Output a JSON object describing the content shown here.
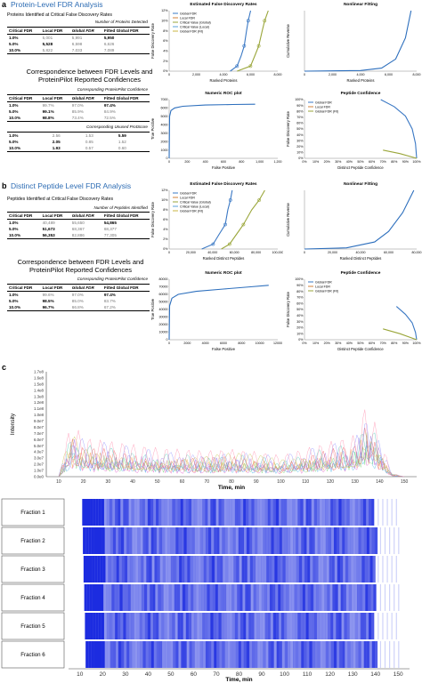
{
  "panel_a": {
    "letter": "a",
    "title": "Protein-Level FDR Analysis",
    "table1": {
      "caption": "Proteins Identified at Critical False Discovery Rates",
      "subheader": "Number of Proteins Detected",
      "headers": [
        "Critical FDR",
        "Local FDR",
        "Global FDR",
        "Fitted Global FDR"
      ],
      "rows": [
        [
          "1.0%",
          "5,001",
          "5,991",
          "5,950"
        ],
        [
          "5.0%",
          "5,528",
          "6,598",
          "6,626"
        ],
        [
          "10.0%",
          "5,822",
          "7,033",
          "7,089"
        ]
      ]
    },
    "table2": {
      "caption": "Correspondence between FDR Levels and ProteinPilot Reported Confidences",
      "subheader": "Corresponding ProteinPilot Confidence",
      "headers": [
        "Critical FDR",
        "Local FDR",
        "Global FDR",
        "Fitted Global FDR"
      ],
      "rows": [
        [
          "1.0%",
          "99.7%",
          "97.0%",
          "97.4%"
        ],
        [
          "5.0%",
          "99.1%",
          "85.9%",
          "84.9%"
        ],
        [
          "10.0%",
          "98.8%",
          "73.4%",
          "72.5%"
        ]
      ],
      "subheader2": "Corresponding Unused ProtScore",
      "rows2": [
        [
          "1.0%",
          "2.56",
          "1.53",
          "5.59"
        ],
        [
          "5.0%",
          "2.05",
          "0.85",
          "1.52"
        ],
        [
          "10.0%",
          "1.93",
          "0.57",
          "0.60"
        ]
      ]
    }
  },
  "panel_b": {
    "letter": "b",
    "title": "Distinct Peptide Level FDR Analysis",
    "table1": {
      "caption": "Peptides Identified at Critical False Discovery Rates",
      "subheader": "Number of Peptides Identified",
      "headers": [
        "Critical FDR",
        "Local FDR",
        "Global FDR",
        "Fitted Global FDR"
      ],
      "rows": [
        [
          "1.0%",
          "40,489",
          "55,650",
          "54,865"
        ],
        [
          "5.0%",
          "51,673",
          "68,367",
          "68,377"
        ],
        [
          "10.0%",
          "56,353",
          "82,886",
          "77,305"
        ]
      ]
    },
    "table2": {
      "caption": "Correspondence between FDR Levels and ProteinPilot Reported Confidences",
      "subheader": "Corresponding ProteinPilot Confidence",
      "headers": [
        "Critical FDR",
        "Local FDR",
        "Global FDR",
        "Fitted Global FDR"
      ],
      "rows": [
        [
          "1.0%",
          "99.6%",
          "97.0%",
          "97.4%"
        ],
        [
          "5.0%",
          "98.5%",
          "85.0%",
          "83.7%"
        ],
        [
          "10.0%",
          "96.7%",
          "66.8%",
          "67.2%"
        ]
      ]
    }
  },
  "panel_c": {
    "letter": "c"
  },
  "chart_data": [
    {
      "type": "line",
      "title": "Estimated False Discovery Rates",
      "xlabel": "Ranked Proteins",
      "ylabel": "False Discovery Rate",
      "xticks": [
        "0",
        "2,000",
        "4,000",
        "6,000",
        "8,000"
      ],
      "yticks": [
        "0%",
        "2%",
        "4%",
        "6%",
        "8%",
        "10%",
        "12%"
      ],
      "xlim": [
        0,
        8000
      ],
      "ylim": [
        0,
        12
      ],
      "legend": [
        "Global FDR",
        "Local FDR",
        "Critical Value (Global)",
        "Critical Value (Local)",
        "Global FDR (Fit)"
      ],
      "series": [
        {
          "name": "Local FDR",
          "x": [
            4500,
            5000,
            5300,
            5528,
            5700,
            5822,
            6000
          ],
          "y": [
            0,
            1,
            3,
            5,
            8,
            10,
            12
          ]
        },
        {
          "name": "Global FDR",
          "x": [
            5000,
            5991,
            6300,
            6598,
            6850,
            7033,
            7300
          ],
          "y": [
            0,
            1,
            3,
            5,
            8,
            10,
            12
          ]
        }
      ]
    },
    {
      "type": "line",
      "title": "Nonlinear Fitting",
      "xlabel": "Ranked Proteins",
      "ylabel": "Cumulative Reverse",
      "xticks": [
        "0",
        "2,000",
        "4,000",
        "6,000",
        "8,000"
      ],
      "xlim": [
        0,
        8000
      ],
      "ylim": [
        0,
        1
      ],
      "series": [
        {
          "name": "",
          "x": [
            0,
            4000,
            5500,
            6500,
            7200,
            7600
          ],
          "y": [
            0,
            0.01,
            0.05,
            0.2,
            0.55,
            1
          ]
        }
      ]
    },
    {
      "type": "line",
      "title": "Numeric ROC plot",
      "xlabel": "False Positive",
      "ylabel": "True Positive",
      "xticks": [
        "0",
        "200",
        "400",
        "600",
        "800",
        "1,000",
        "1,200"
      ],
      "yticks": [
        "0",
        "1000",
        "2000",
        "3000",
        "4000",
        "5000",
        "6000",
        "7000"
      ],
      "xlim": [
        0,
        1200
      ],
      "ylim": [
        0,
        7000
      ],
      "series": [
        {
          "name": "",
          "x": [
            0,
            5,
            20,
            60,
            150,
            400,
            700,
            950
          ],
          "y": [
            0,
            5000,
            5700,
            6000,
            6200,
            6350,
            6420,
            6450
          ]
        }
      ]
    },
    {
      "type": "line",
      "title": "Peptide Confidence",
      "xlabel": "Distinct Peptide Confidence",
      "ylabel": "False Discovery Rate",
      "xticks": [
        "0%",
        "10%",
        "20%",
        "30%",
        "40%",
        "50%",
        "60%",
        "70%",
        "80%",
        "90%",
        "100%"
      ],
      "yticks": [
        "0%",
        "10%",
        "20%",
        "30%",
        "40%",
        "50%",
        "60%",
        "70%",
        "80%",
        "90%",
        "100%"
      ],
      "xlim": [
        0,
        100
      ],
      "ylim": [
        0,
        100
      ],
      "legend": [
        "Global FDR",
        "Local FDR",
        "Global FDR (Fit)"
      ],
      "series": [
        {
          "name": "Local FDR",
          "x": [
            68,
            80,
            90,
            96,
            99,
            100
          ],
          "y": [
            100,
            88,
            72,
            50,
            25,
            0
          ]
        },
        {
          "name": "Global FDR",
          "x": [
            70,
            85,
            100
          ],
          "y": [
            14,
            8,
            0
          ]
        }
      ]
    },
    {
      "type": "line",
      "title": "Estimated False Discovery Rates",
      "xlabel": "Ranked Distinct Peptides",
      "ylabel": "False Discovery Rate",
      "xticks": [
        "0",
        "20,000",
        "40,000",
        "60,000",
        "80,000",
        "100,000"
      ],
      "yticks": [
        "0%",
        "2%",
        "4%",
        "6%",
        "8%",
        "10%",
        "12%"
      ],
      "xlim": [
        0,
        100000
      ],
      "ylim": [
        0,
        12
      ],
      "legend": [
        "Global FDR",
        "Local FDR",
        "Critical Value (Global)",
        "Critical Value (Local)",
        "Global FDR (Fit)"
      ],
      "series": [
        {
          "name": "Local FDR",
          "x": [
            30000,
            40489,
            46000,
            51673,
            54000,
            56353,
            58000
          ],
          "y": [
            0,
            1,
            3,
            5,
            8,
            10,
            12
          ]
        },
        {
          "name": "Global FDR",
          "x": [
            48000,
            55650,
            62000,
            68367,
            76000,
            82886,
            88000
          ],
          "y": [
            0,
            1,
            3,
            5,
            8,
            10,
            12
          ]
        }
      ]
    },
    {
      "type": "line",
      "title": "Nonlinear Fitting",
      "xlabel": "Ranked Distinct Peptides",
      "ylabel": "Cumulative Reverse",
      "xticks": [
        "0",
        "20,000",
        "40,000",
        "60,000",
        "80,000"
      ],
      "xlim": [
        0,
        80000
      ],
      "ylim": [
        0,
        1
      ],
      "series": [
        {
          "name": "",
          "x": [
            0,
            30000,
            50000,
            60000,
            70000,
            78000
          ],
          "y": [
            0,
            0.02,
            0.12,
            0.3,
            0.62,
            1
          ]
        }
      ]
    },
    {
      "type": "line",
      "title": "Numeric ROC plot",
      "xlabel": "False Positive",
      "ylabel": "True Positive",
      "xticks": [
        "0",
        "2000",
        "4000",
        "6000",
        "8000",
        "10000",
        "12000"
      ],
      "yticks": [
        "0",
        "10000",
        "20000",
        "30000",
        "40000",
        "50000",
        "60000",
        "70000",
        "80000"
      ],
      "xlim": [
        0,
        12000
      ],
      "ylim": [
        0,
        80000
      ],
      "series": [
        {
          "name": "",
          "x": [
            0,
            50,
            300,
            1000,
            3000,
            6000,
            9000,
            11000
          ],
          "y": [
            0,
            45000,
            55000,
            60000,
            64000,
            67000,
            70000,
            72000
          ]
        }
      ]
    },
    {
      "type": "line",
      "title": "Peptide Confidence",
      "xlabel": "Distinct Peptide Confidence",
      "ylabel": "False Discovery Rate",
      "xticks": [
        "0%",
        "10%",
        "20%",
        "30%",
        "40%",
        "50%",
        "60%",
        "70%",
        "80%",
        "90%",
        "100%"
      ],
      "yticks": [
        "0%",
        "10%",
        "20%",
        "30%",
        "40%",
        "50%",
        "60%",
        "70%",
        "80%",
        "90%",
        "100%"
      ],
      "xlim": [
        0,
        100
      ],
      "ylim": [
        0,
        100
      ],
      "legend": [
        "Global FDR",
        "Local FDR",
        "Global FDR (Fit)"
      ],
      "series": [
        {
          "name": "Local FDR",
          "x": [
            82,
            90,
            96,
            99,
            100
          ],
          "y": [
            55,
            42,
            28,
            12,
            0
          ]
        },
        {
          "name": "Global FDR",
          "x": [
            70,
            85,
            100
          ],
          "y": [
            18,
            10,
            0
          ]
        }
      ]
    },
    {
      "type": "line",
      "title": "",
      "xlabel": "Time, min",
      "ylabel": "Intensity",
      "xticks": [
        "10",
        "20",
        "30",
        "40",
        "50",
        "60",
        "70",
        "80",
        "90",
        "100",
        "110",
        "120",
        "130",
        "140",
        "150"
      ],
      "yticks": [
        "0.0e0",
        "1.0e7",
        "2.0e7",
        "3.0e7",
        "4.0e7",
        "5.0e7",
        "6.0e7",
        "7.0e7",
        "8.0e7",
        "9.0e7",
        "1.0e8",
        "1.1e8",
        "1.2e8",
        "1.3e8",
        "1.4e8",
        "1.5e8",
        "1.6e8",
        "1.7e8"
      ],
      "xlim": [
        5,
        155
      ],
      "ylim": [
        0,
        170000000
      ],
      "series": [
        {
          "name": "",
          "x": [
            10,
            15,
            20,
            30,
            40,
            50,
            60,
            70,
            80,
            90,
            100,
            110,
            120,
            130,
            135,
            140,
            145,
            150
          ],
          "y": [
            0,
            80000000,
            55000000,
            50000000,
            45000000,
            40000000,
            38000000,
            36000000,
            38000000,
            35000000,
            30000000,
            40000000,
            50000000,
            60000000,
            110000000,
            60000000,
            5000000,
            0
          ]
        }
      ]
    },
    {
      "type": "heatmap",
      "title": "",
      "xlabel": "Time, min",
      "xticks": [
        "10",
        "20",
        "30",
        "40",
        "50",
        "60",
        "70",
        "80",
        "90",
        "100",
        "110",
        "120",
        "130",
        "140",
        "150"
      ],
      "xlim": [
        5,
        155
      ],
      "rows": [
        "Fraction 1",
        "Fraction 2",
        "Fraction 3",
        "Fraction 4",
        "Fraction 5",
        "Fraction 6"
      ]
    }
  ]
}
